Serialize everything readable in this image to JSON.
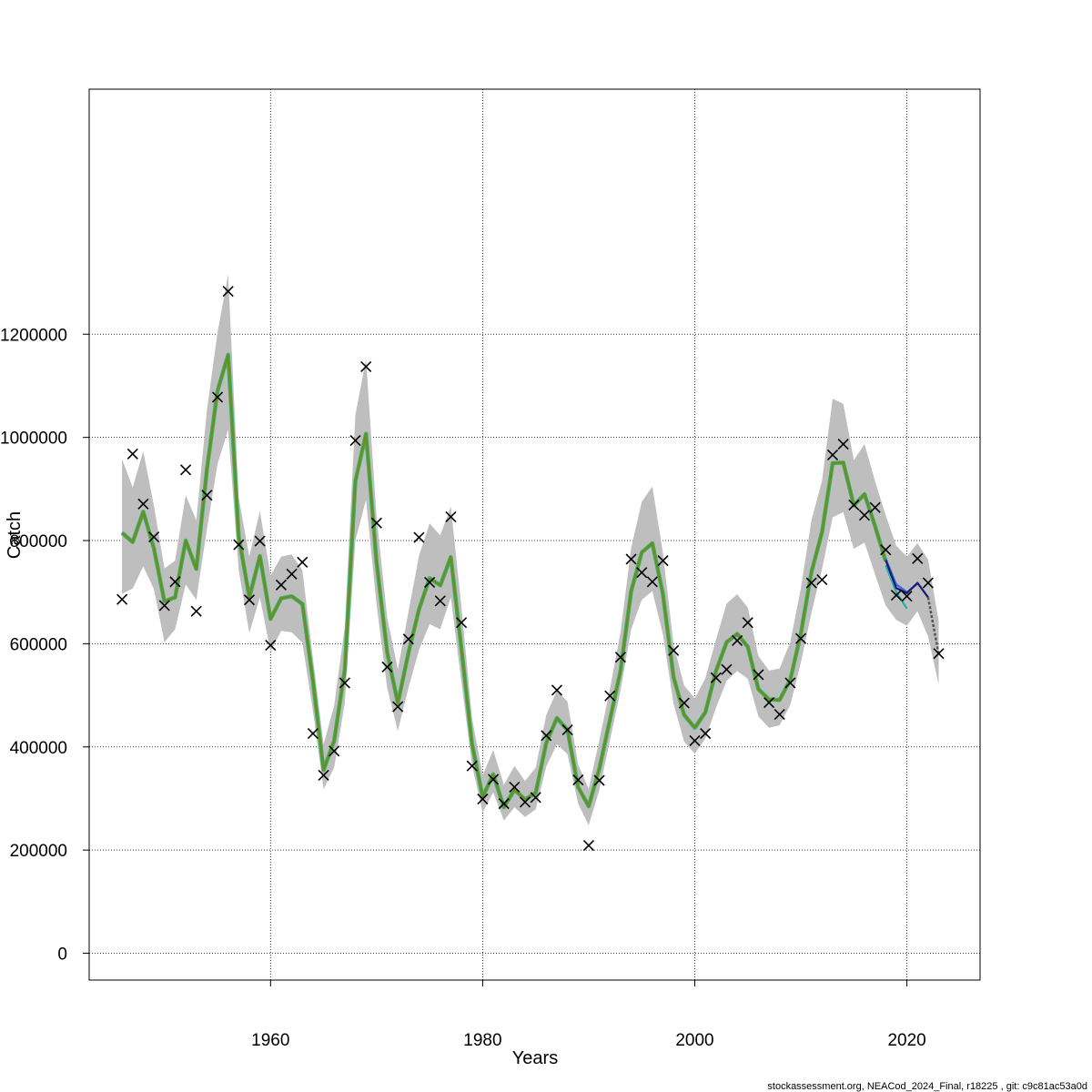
{
  "chart_data": {
    "type": "line",
    "title": "",
    "xlabel": "Years",
    "ylabel": "Catch",
    "xlim": [
      1942.9,
      2026.9
    ],
    "ylim": [
      -52000,
      1675000
    ],
    "xticks": [
      1960,
      1980,
      2000,
      2020
    ],
    "yticks": [
      0,
      200000,
      400000,
      600000,
      800000,
      1000000,
      1200000
    ],
    "grid": true,
    "footer": "stockassessment.org, NEACod_2024_Final, r18225 , git: c9c81ac53a0d",
    "colors": {
      "band": "#bebebe",
      "fit": "#6b8e23",
      "fit_edge": "#3cb371",
      "retro": [
        "#20b2aa",
        "#4169e1",
        "#191970"
      ],
      "forecast": "#555555",
      "observed": "#000000"
    },
    "series": [
      {
        "kind": "band",
        "x": [
          1946,
          1947,
          1948,
          1949,
          1950,
          1951,
          1952,
          1953,
          1954,
          1955,
          1956,
          1957,
          1958,
          1959,
          1960,
          1961,
          1962,
          1963,
          1964,
          1965,
          1966,
          1967,
          1968,
          1969,
          1970,
          1971,
          1972,
          1973,
          1974,
          1975,
          1976,
          1977,
          1978,
          1979,
          1980,
          1981,
          1982,
          1983,
          1984,
          1985,
          1986,
          1987,
          1988,
          1989,
          1990,
          1991,
          1992,
          1993,
          1994,
          1995,
          1996,
          1997,
          1998,
          1999,
          2000,
          2001,
          2002,
          2003,
          2004,
          2005,
          2006,
          2007,
          2008,
          2009,
          2010,
          2011,
          2012,
          2013,
          2014,
          2015,
          2016,
          2017,
          2018,
          2019,
          2020,
          2021,
          2022,
          2023
        ],
        "lower": [
          697000,
          707000,
          750000,
          706000,
          603000,
          628000,
          715000,
          685000,
          822000,
          948000,
          1015000,
          743000,
          621000,
          690000,
          585000,
          625000,
          622000,
          602000,
          470000,
          318000,
          360000,
          485000,
          800000,
          879000,
          676000,
          514000,
          431000,
          514000,
          588000,
          638000,
          628000,
          690000,
          525000,
          365000,
          273000,
          312000,
          257000,
          283000,
          264000,
          279000,
          362000,
          405000,
          386000,
          290000,
          248000,
          316000,
          412000,
          509000,
          628000,
          685000,
          702000,
          618000,
          484000,
          410000,
          387000,
          416000,
          476000,
          528000,
          547000,
          532000,
          459000,
          437000,
          442000,
          481000,
          563000,
          660000,
          745000,
          845000,
          855000,
          784000,
          796000,
          734000,
          674000,
          646000,
          635000,
          663000,
          614000,
          521000
        ],
        "upper": [
          958000,
          903000,
          973000,
          868000,
          746000,
          761000,
          888000,
          839000,
          1053000,
          1203000,
          1316000,
          883000,
          769000,
          857000,
          732000,
          769000,
          773000,
          742000,
          572000,
          405000,
          480000,
          633000,
          1043000,
          1152000,
          846000,
          651000,
          550000,
          661000,
          771000,
          833000,
          810000,
          866000,
          671000,
          456000,
          345000,
          394000,
          327000,
          363000,
          334000,
          360000,
          462000,
          509000,
          488000,
          366000,
          319000,
          413000,
          512000,
          622000,
          786000,
          875000,
          905000,
          776000,
          598000,
          519000,
          494000,
          533000,
          608000,
          678000,
          696000,
          670000,
          576000,
          548000,
          552000,
          603000,
          707000,
          839000,
          916000,
          1075000,
          1065000,
          956000,
          987000,
          915000,
          849000,
          790000,
          769000,
          795000,
          763000,
          644000
        ]
      },
      {
        "kind": "line",
        "role": "fit",
        "x": [
          1946,
          1947,
          1948,
          1949,
          1950,
          1951,
          1952,
          1953,
          1954,
          1955,
          1956,
          1957,
          1958,
          1959,
          1960,
          1961,
          1962,
          1963,
          1964,
          1965,
          1966,
          1967,
          1968,
          1969,
          1970,
          1971,
          1972,
          1973,
          1974,
          1975,
          1976,
          1977,
          1978,
          1979,
          1980,
          1981,
          1982,
          1983,
          1984,
          1985,
          1986,
          1987,
          1988,
          1989,
          1990,
          1991,
          1992,
          1993,
          1994,
          1995,
          1996,
          1997,
          1998,
          1999,
          2000,
          2001,
          2002,
          2003,
          2004,
          2005,
          2006,
          2007,
          2008,
          2009,
          2010,
          2011,
          2012,
          2013,
          2014,
          2015,
          2016,
          2017,
          2018
        ],
        "values": [
          815000,
          797000,
          856000,
          785000,
          682000,
          690000,
          800000,
          745000,
          938000,
          1090000,
          1160000,
          808000,
          690000,
          770000,
          648000,
          688000,
          692000,
          677000,
          528000,
          355000,
          412000,
          550000,
          915000,
          1007000,
          758000,
          583000,
          485000,
          582000,
          667000,
          727000,
          713000,
          768000,
          590000,
          406000,
          303000,
          347000,
          283000,
          317000,
          298000,
          311000,
          408000,
          456000,
          433000,
          322000,
          285000,
          358000,
          452000,
          548000,
          702000,
          777000,
          795000,
          696000,
          535000,
          462000,
          437000,
          467000,
          547000,
          603000,
          619000,
          594000,
          512000,
          492000,
          491000,
          530000,
          619000,
          739000,
          816000,
          950000,
          951000,
          868000,
          890000,
          828000,
          760000
        ],
        "name": ""
      },
      {
        "kind": "line",
        "role": "retro",
        "x": [
          2018,
          2019,
          2020
        ],
        "values": [
          752000,
          700000,
          668000
        ],
        "name": ""
      },
      {
        "kind": "line",
        "role": "retro",
        "x": [
          2018,
          2019,
          2020,
          2021
        ],
        "values": [
          765000,
          715000,
          700000,
          716000
        ],
        "name": ""
      },
      {
        "kind": "line",
        "role": "retro",
        "x": [
          2018,
          2019,
          2020,
          2021,
          2022
        ],
        "values": [
          762000,
          708000,
          698000,
          718000,
          690000
        ],
        "name": ""
      },
      {
        "kind": "line",
        "role": "forecast",
        "x": [
          2022,
          2023
        ],
        "values": [
          690000,
          580000
        ],
        "name": ""
      },
      {
        "kind": "scatter",
        "role": "observed",
        "x": [
          1946,
          1947,
          1948,
          1949,
          1950,
          1951,
          1952,
          1953,
          1954,
          1955,
          1956,
          1957,
          1958,
          1959,
          1960,
          1961,
          1962,
          1963,
          1964,
          1965,
          1966,
          1967,
          1968,
          1969,
          1970,
          1971,
          1972,
          1973,
          1974,
          1975,
          1976,
          1977,
          1978,
          1979,
          1980,
          1981,
          1982,
          1983,
          1984,
          1985,
          1986,
          1987,
          1988,
          1989,
          1990,
          1991,
          1992,
          1993,
          1994,
          1995,
          1996,
          1997,
          1998,
          1999,
          2000,
          2001,
          2002,
          2003,
          2004,
          2005,
          2006,
          2007,
          2008,
          2009,
          2010,
          2011,
          2012,
          2013,
          2014,
          2015,
          2016,
          2017,
          2018,
          2019,
          2020,
          2021,
          2022,
          2023
        ],
        "values": [
          686000,
          968000,
          871000,
          807000,
          674000,
          720000,
          937000,
          663000,
          888000,
          1078000,
          1283000,
          792000,
          685000,
          799000,
          597000,
          714000,
          735000,
          758000,
          426000,
          345000,
          392000,
          524000,
          994000,
          1137000,
          834000,
          555000,
          478000,
          609000,
          806000,
          719000,
          683000,
          846000,
          641000,
          363000,
          299000,
          337000,
          290000,
          322000,
          293000,
          302000,
          422000,
          510000,
          433000,
          336000,
          209000,
          335000,
          499000,
          574000,
          764000,
          738000,
          720000,
          761000,
          587000,
          485000,
          412000,
          426000,
          534000,
          550000,
          606000,
          641000,
          540000,
          486000,
          463000,
          524000,
          610000,
          718000,
          724000,
          966000,
          987000,
          869000,
          849000,
          864000,
          782000,
          694000,
          692000,
          765000,
          718000,
          581000
        ],
        "name": ""
      }
    ]
  }
}
